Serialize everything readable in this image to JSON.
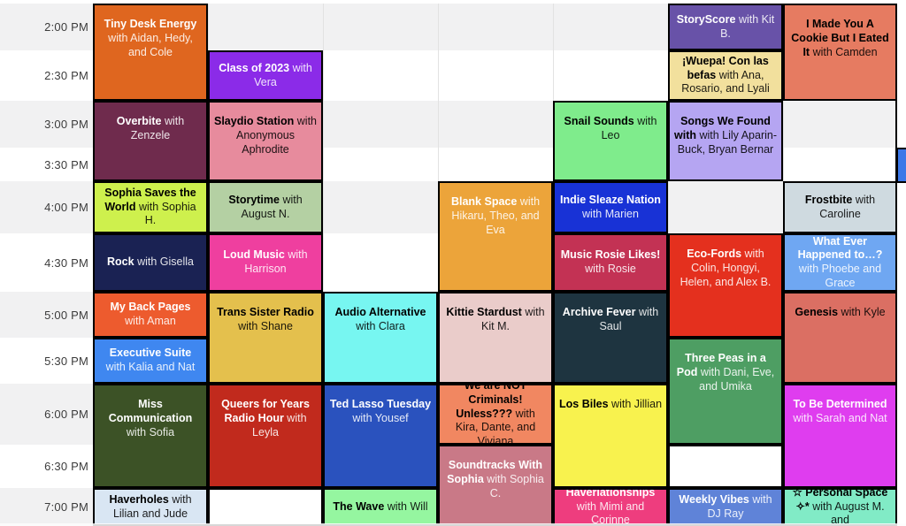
{
  "palette": {
    "row_gray": "#f1f1f2",
    "row_white": "#ffffff",
    "grid_line": "#e2e2e2",
    "event_border": "#000000",
    "edge_fragment_blue": "#3c78e8"
  },
  "rows": [
    {
      "label": "2:00 PM",
      "shade": "gray"
    },
    {
      "label": "2:30 PM",
      "shade": "white"
    },
    {
      "label": "3:00 PM",
      "shade": "gray"
    },
    {
      "label": "3:30 PM",
      "shade": "white"
    },
    {
      "label": "4:00 PM",
      "shade": "gray"
    },
    {
      "label": "4:30 PM",
      "shade": "white"
    },
    {
      "label": "5:00 PM",
      "shade": "gray"
    },
    {
      "label": "5:30 PM",
      "shade": "white"
    },
    {
      "label": "6:00 PM",
      "shade": "gray"
    },
    {
      "label": "6:30 PM",
      "shade": "white"
    },
    {
      "label": "7:00 PM",
      "shade": "gray"
    }
  ],
  "columns": [
    {
      "events": [
        {
          "title": "Tiny Desk Energy",
          "names": "with Aidan, Hedy, and Cole",
          "start": 0,
          "end": 2,
          "bg": "#df661f",
          "fg": "#ffffff"
        },
        {
          "title": "Overbite",
          "names": "with Zenzele",
          "start": 2,
          "end": 4,
          "bg": "#6f2b4d",
          "fg": "#ffffff"
        },
        {
          "title": "Sophia Saves the World",
          "names": "with Sophia H.",
          "start": 4,
          "end": 5,
          "bg": "#cef04d",
          "fg": "#000000"
        },
        {
          "title": "Rock",
          "names": "with Gisella",
          "start": 5,
          "end": 6,
          "bg": "#1a2253",
          "fg": "#ffffff"
        },
        {
          "title": "My Back Pages",
          "names": "with Aman",
          "start": 6,
          "end": 7,
          "bg": "#ed5b2e",
          "fg": "#ffffff"
        },
        {
          "title": "Executive Suite",
          "names": "with Kalia and Nat",
          "start": 7,
          "end": 8,
          "bg": "#3f87f0",
          "fg": "#ffffff"
        },
        {
          "title": "Miss Communication",
          "names": "with Sofia",
          "start": 8,
          "end": 10,
          "bg": "#3c5226",
          "fg": "#ffffff"
        },
        {
          "title": "Haverholes",
          "names": "with Lilian and Jude",
          "start": 10,
          "end": 11,
          "bg": "#d9e6f3",
          "fg": "#000000"
        }
      ]
    },
    {
      "events": [
        {
          "title": "Class of 2023",
          "names": "with Vera",
          "start": 1,
          "end": 2,
          "bg": "#8b2be8",
          "fg": "#ffffff"
        },
        {
          "title": "Slaydio Station",
          "names": "with Anonymous Aphrodite",
          "start": 2,
          "end": 4,
          "bg": "#e78b9d",
          "fg": "#000000"
        },
        {
          "title": "Storytime",
          "names": "with August N.",
          "start": 4,
          "end": 5,
          "bg": "#b4d0a3",
          "fg": "#000000"
        },
        {
          "title": "Loud Music",
          "names": "with Harrison",
          "start": 5,
          "end": 6,
          "bg": "#ef3f9f",
          "fg": "#ffffff"
        },
        {
          "title": "Trans Sister Radio",
          "names": "with Shane",
          "start": 6,
          "end": 8,
          "bg": "#e4c04d",
          "fg": "#000000"
        },
        {
          "title": "Queers for Years Radio Hour",
          "names": "with Leyla",
          "start": 8,
          "end": 10,
          "bg": "#c12a1d",
          "fg": "#ffffff"
        },
        {
          "title": "",
          "names": "",
          "start": 10,
          "end": 11,
          "bg": "#ffffff",
          "fg": "#000000"
        }
      ]
    },
    {
      "events": [
        {
          "title": "Audio Alternative",
          "names": "with Clara",
          "start": 6,
          "end": 8,
          "bg": "#77f6f1",
          "fg": "#000000"
        },
        {
          "title": "Ted Lasso Tuesday",
          "names": "with Yousef",
          "start": 8,
          "end": 10,
          "bg": "#2a52be",
          "fg": "#ffffff"
        },
        {
          "title": "The Wave",
          "names": "with Will",
          "start": 10,
          "end": 11,
          "bg": "#95f6a0",
          "fg": "#000000"
        }
      ]
    },
    {
      "events": [
        {
          "title": "Blank Space",
          "names": "with Hikaru, Theo, and Eva",
          "start": 4,
          "end": 6,
          "bg": "#eca43a",
          "fg": "#ffffff"
        },
        {
          "title": "Kittie Stardust",
          "names": "with Kit M.",
          "start": 6,
          "end": 8,
          "bg": "#eaccca",
          "fg": "#000000"
        },
        {
          "title": "We are NOT Criminals! Unless???",
          "names": "with Kira, Dante, and Viviana",
          "start": 8,
          "end": 9,
          "bg": "#f18761",
          "fg": "#000000"
        },
        {
          "title": "Soundtracks With Sophia",
          "names": "with Sophia C.",
          "start": 9,
          "end": 11,
          "bg": "#c97987",
          "fg": "#ffffff"
        }
      ]
    },
    {
      "events": [
        {
          "title": "Snail Sounds",
          "names": "with Leo",
          "start": 2,
          "end": 4,
          "bg": "#7fec8c",
          "fg": "#000000"
        },
        {
          "title": "Indie Sleaze Nation",
          "names": "with Marien",
          "start": 4,
          "end": 5,
          "bg": "#1832d6",
          "fg": "#ffffff"
        },
        {
          "title": "Music Rosie Likes!",
          "names": "with Rosie",
          "start": 5,
          "end": 6,
          "bg": "#c33254",
          "fg": "#ffffff"
        },
        {
          "title": "Archive Fever",
          "names": "with Saul",
          "start": 6,
          "end": 8,
          "bg": "#1e3440",
          "fg": "#ffffff"
        },
        {
          "title": "Los Biles",
          "names": "with Jillian",
          "start": 8,
          "end": 10,
          "bg": "#f8f24e",
          "fg": "#000000"
        },
        {
          "title": "Haverlationships",
          "names": "with Mimi and Corinne",
          "start": 10,
          "end": 11,
          "bg": "#ee3d7e",
          "fg": "#ffffff"
        }
      ]
    },
    {
      "events": [
        {
          "title": "StoryScore",
          "names": "with Kit B.",
          "start": 0,
          "end": 1,
          "bg": "#6852a8",
          "fg": "#ffffff"
        },
        {
          "title": "¡Wuepa! Con las befas",
          "names": "with Ana, Rosario, and Lyali",
          "start": 1,
          "end": 2,
          "bg": "#f2e09d",
          "fg": "#000000"
        },
        {
          "title": "Songs We Found with",
          "names": "with Lily Aparin-Buck, Bryan Bernar",
          "start": 2,
          "end": 4,
          "bg": "#b5a5f2",
          "fg": "#000000"
        },
        {
          "title": "Eco-Fords",
          "names": "with Colin, Hongyi, Helen, and Alex B.",
          "start": 5,
          "end": 7,
          "bg": "#e4301e",
          "fg": "#ffffff"
        },
        {
          "title": "Three Peas in a Pod",
          "names": "with Dani, Eve, and Umika",
          "start": 7,
          "end": 9,
          "bg": "#4e9e63",
          "fg": "#ffffff"
        },
        {
          "title": "",
          "names": "",
          "start": 9,
          "end": 10,
          "bg": "#ffffff",
          "fg": "#000000"
        },
        {
          "title": "Weekly Vibes",
          "names": "with DJ Ray",
          "start": 10,
          "end": 11,
          "bg": "#5f83d8",
          "fg": "#ffffff"
        }
      ]
    },
    {
      "events": [
        {
          "title": "I Made You A Cookie But I Eated It",
          "names": "with Camden",
          "start": 0,
          "end": 2,
          "bg": "#e67b61",
          "fg": "#000000"
        },
        {
          "title": "Frostbite",
          "names": "with Caroline",
          "start": 4,
          "end": 5,
          "bg": "#cfdae0",
          "fg": "#000000"
        },
        {
          "title": "What Ever Happened to…?",
          "names": "with Phoebe and Grace",
          "start": 5,
          "end": 6,
          "bg": "#6fa7f2",
          "fg": "#ffffff"
        },
        {
          "title": "Genesis",
          "names": "with Kyle",
          "start": 6,
          "end": 8,
          "bg": "#db6f63",
          "fg": "#000000"
        },
        {
          "title": "To Be Determined",
          "names": "with Sarah and Nat",
          "start": 8,
          "end": 10,
          "bg": "#df3def",
          "fg": "#ffffff"
        },
        {
          "title": "☆ Personal Space ✧*",
          "names": "with August M. and",
          "start": 10,
          "end": 11,
          "bg": "#81ebc6",
          "fg": "#000000"
        }
      ]
    }
  ]
}
